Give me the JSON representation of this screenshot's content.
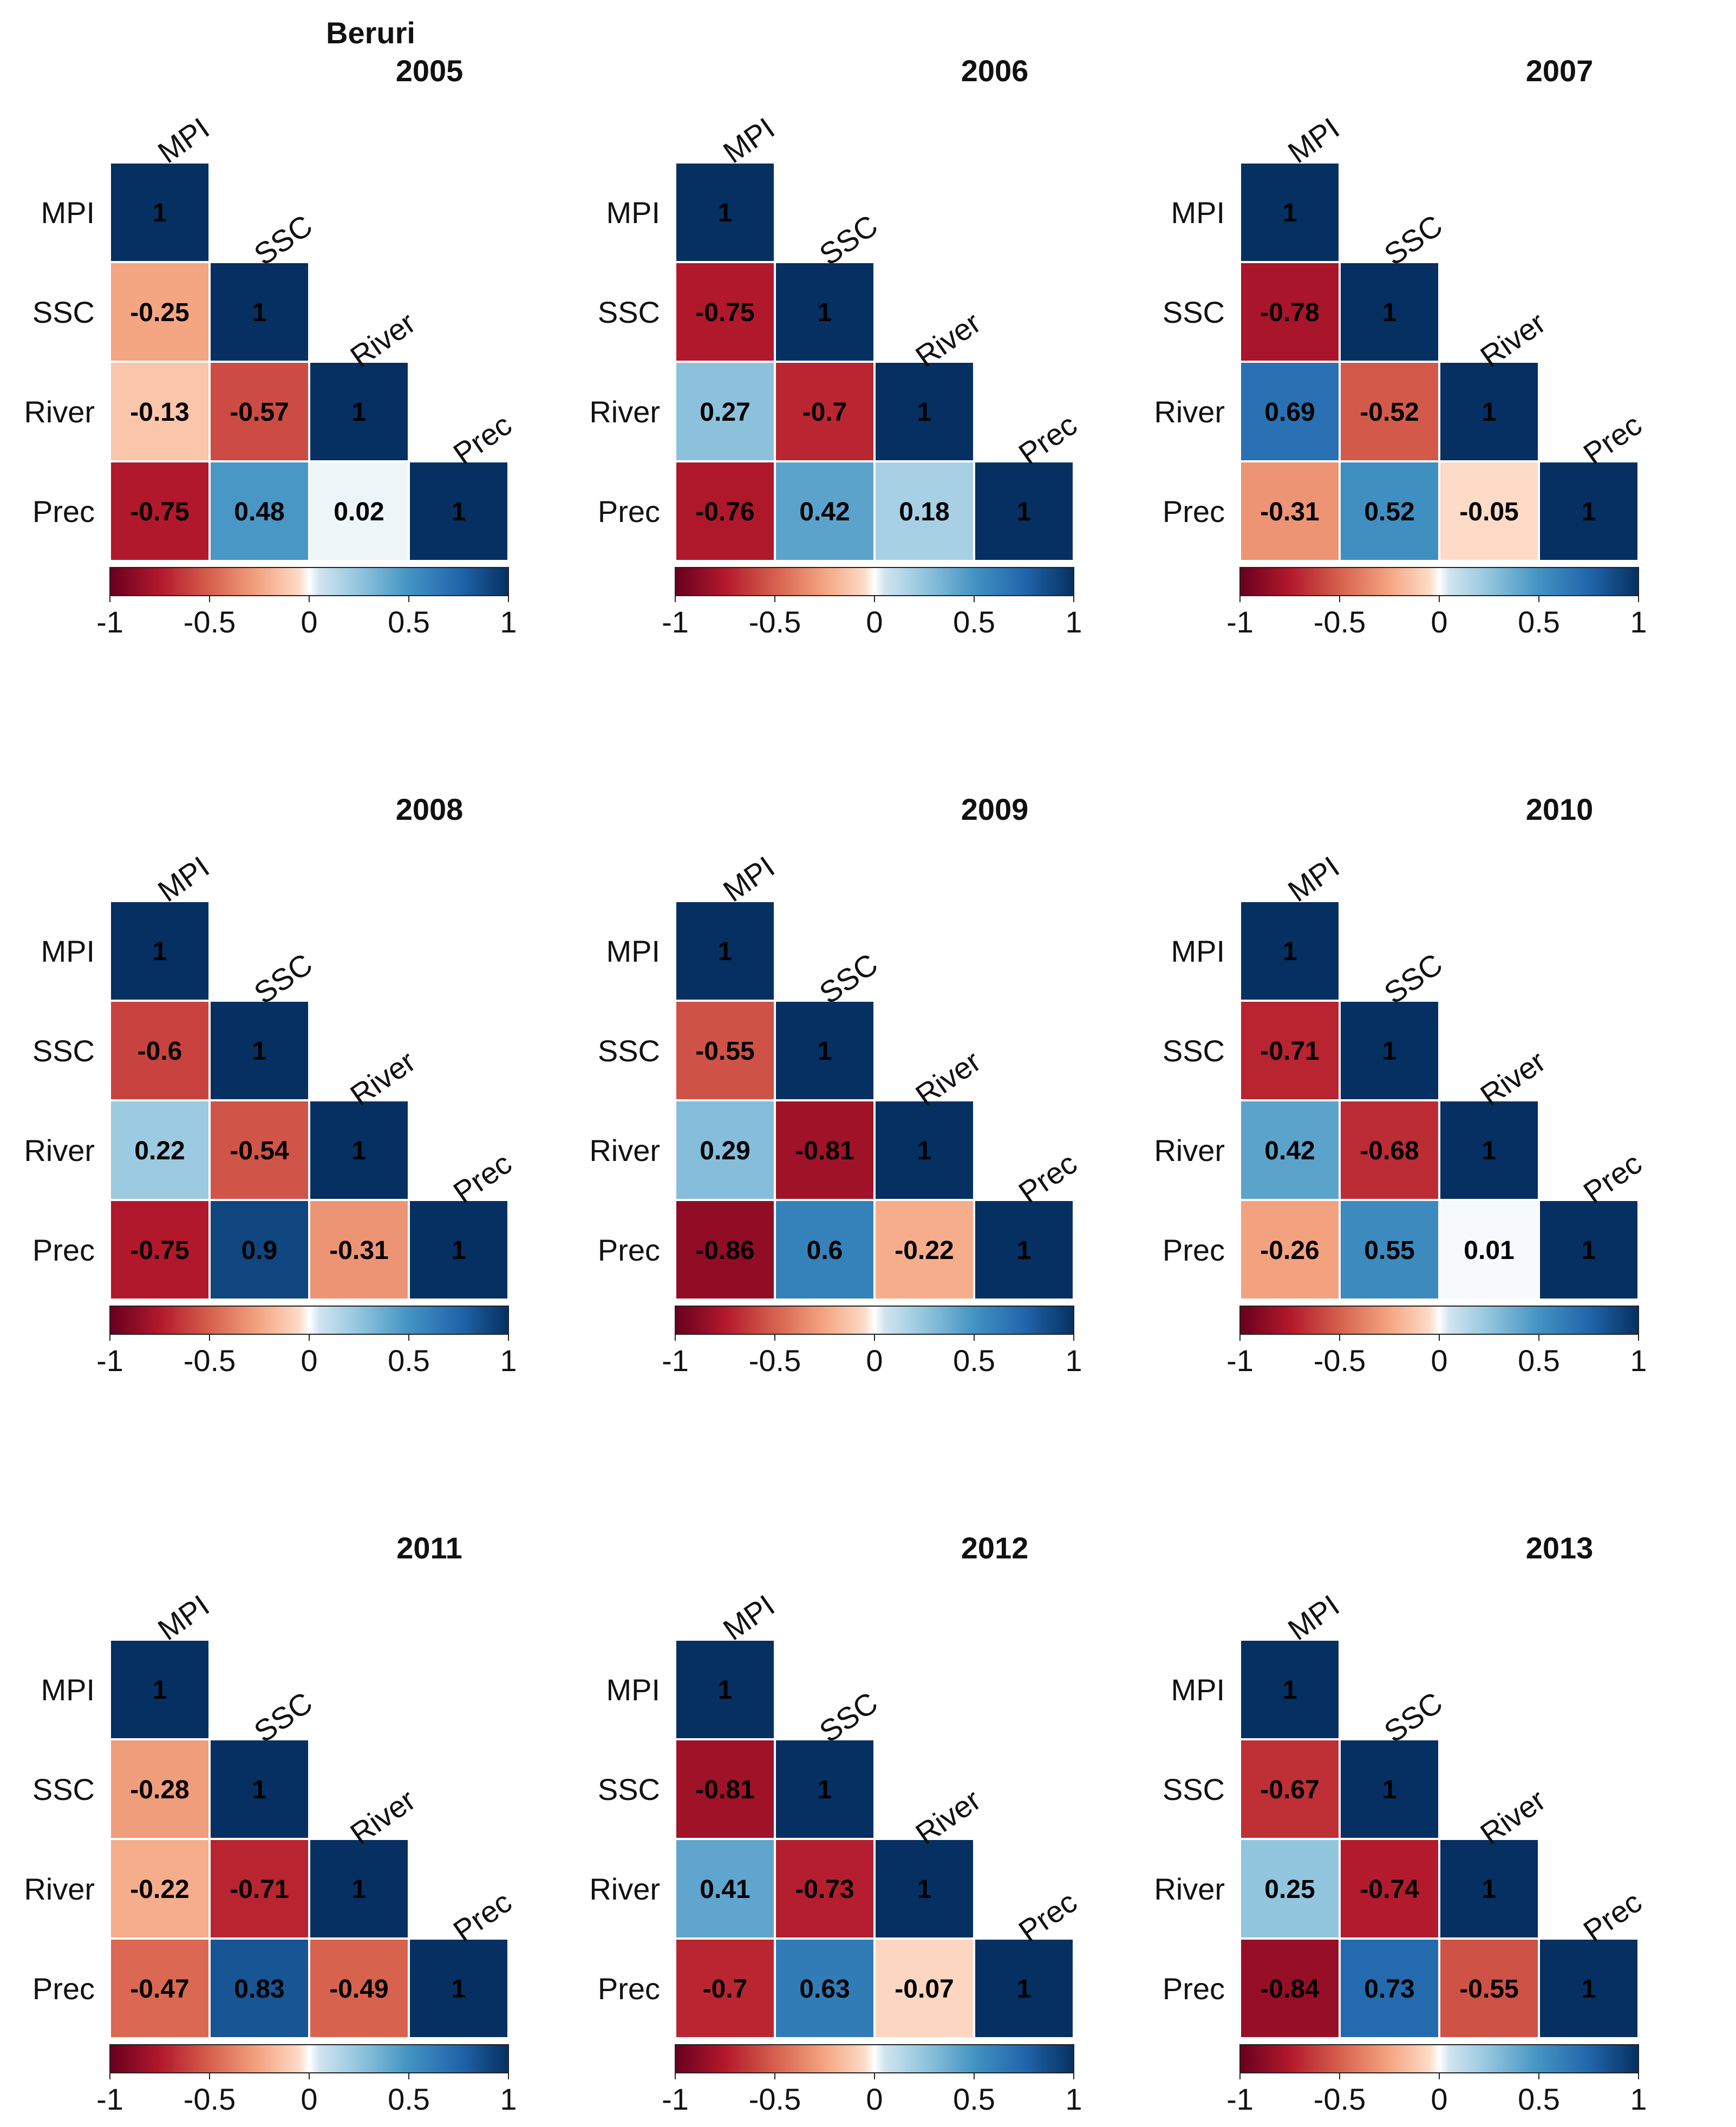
{
  "chart_data": {
    "type": "heatmap",
    "title": "Beruri",
    "variables": [
      "MPI",
      "SSC",
      "River",
      "Prec"
    ],
    "colorbar": {
      "range": [
        -1,
        1
      ],
      "tick_labels": [
        "-1",
        "-0.5",
        "0",
        "0.5",
        "1"
      ]
    },
    "colors": {
      "negative": "#67001f",
      "neutral": "#ffffff",
      "positive": "#053061"
    },
    "panels": [
      {
        "title": "2005",
        "values": [
          [
            1
          ],
          [
            -0.25,
            1
          ],
          [
            -0.13,
            -0.57,
            1
          ],
          [
            -0.75,
            0.48,
            0.02,
            1
          ]
        ],
        "labels": [
          [
            "1"
          ],
          [
            "-0.25",
            "1"
          ],
          [
            "-0.13",
            "-0.57",
            "1"
          ],
          [
            "-0.75",
            "0.48",
            "0.02",
            "1"
          ]
        ]
      },
      {
        "title": "2006",
        "values": [
          [
            1
          ],
          [
            -0.75,
            1
          ],
          [
            0.27,
            -0.7,
            1
          ],
          [
            -0.76,
            0.42,
            0.18,
            1
          ]
        ],
        "labels": [
          [
            "1"
          ],
          [
            "-0.75",
            "1"
          ],
          [
            "0.27",
            "-0.7",
            "1"
          ],
          [
            "-0.76",
            "0.42",
            "0.18",
            "1"
          ]
        ]
      },
      {
        "title": "2007",
        "values": [
          [
            1
          ],
          [
            -0.78,
            1
          ],
          [
            0.69,
            -0.52,
            1
          ],
          [
            -0.31,
            0.52,
            -0.05,
            1
          ]
        ],
        "labels": [
          [
            "1"
          ],
          [
            "-0.78",
            "1"
          ],
          [
            "0.69",
            "-0.52",
            "1"
          ],
          [
            "-0.31",
            "0.52",
            "-0.05",
            "1"
          ]
        ]
      },
      {
        "title": "2008",
        "values": [
          [
            1
          ],
          [
            -0.6,
            1
          ],
          [
            0.22,
            -0.54,
            1
          ],
          [
            -0.75,
            0.9,
            -0.31,
            1
          ]
        ],
        "labels": [
          [
            "1"
          ],
          [
            "-0.6",
            "1"
          ],
          [
            "0.22",
            "-0.54",
            "1"
          ],
          [
            "-0.75",
            "0.9",
            "-0.31",
            "1"
          ]
        ]
      },
      {
        "title": "2009",
        "values": [
          [
            1
          ],
          [
            -0.55,
            1
          ],
          [
            0.29,
            -0.81,
            1
          ],
          [
            -0.86,
            0.6,
            -0.22,
            1
          ]
        ],
        "labels": [
          [
            "1"
          ],
          [
            "-0.55",
            "1"
          ],
          [
            "0.29",
            "-0.81",
            "1"
          ],
          [
            "-0.86",
            "0.6",
            "-0.22",
            "1"
          ]
        ]
      },
      {
        "title": "2010",
        "values": [
          [
            1
          ],
          [
            -0.71,
            1
          ],
          [
            0.42,
            -0.68,
            1
          ],
          [
            -0.26,
            0.55,
            0.01,
            1
          ]
        ],
        "labels": [
          [
            "1"
          ],
          [
            "-0.71",
            "1"
          ],
          [
            "0.42",
            "-0.68",
            "1"
          ],
          [
            "-0.26",
            "0.55",
            "0.01",
            "1"
          ]
        ]
      },
      {
        "title": "2011",
        "values": [
          [
            1
          ],
          [
            -0.28,
            1
          ],
          [
            -0.22,
            -0.71,
            1
          ],
          [
            -0.47,
            0.83,
            -0.49,
            1
          ]
        ],
        "labels": [
          [
            "1"
          ],
          [
            "-0.28",
            "1"
          ],
          [
            "-0.22",
            "-0.71",
            "1"
          ],
          [
            "-0.47",
            "0.83",
            "-0.49",
            "1"
          ]
        ]
      },
      {
        "title": "2012",
        "values": [
          [
            1
          ],
          [
            -0.81,
            1
          ],
          [
            0.41,
            -0.73,
            1
          ],
          [
            -0.7,
            0.63,
            -0.07,
            1
          ]
        ],
        "labels": [
          [
            "1"
          ],
          [
            "-0.81",
            "1"
          ],
          [
            "0.41",
            "-0.73",
            "1"
          ],
          [
            "-0.7",
            "0.63",
            "-0.07",
            "1"
          ]
        ]
      },
      {
        "title": "2013",
        "values": [
          [
            1
          ],
          [
            -0.67,
            1
          ],
          [
            0.25,
            -0.74,
            1
          ],
          [
            -0.84,
            0.73,
            -0.55,
            1
          ]
        ],
        "labels": [
          [
            "1"
          ],
          [
            "-0.67",
            "1"
          ],
          [
            "0.25",
            "-0.74",
            "1"
          ],
          [
            "-0.84",
            "0.73",
            "-0.55",
            "1"
          ]
        ]
      }
    ]
  }
}
